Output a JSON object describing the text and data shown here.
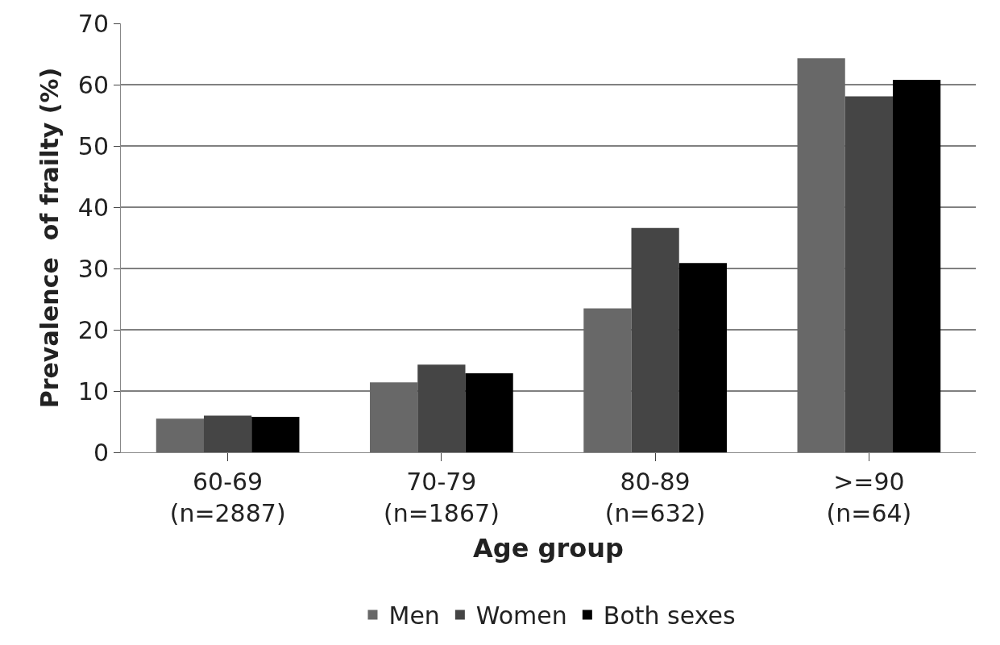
{
  "chart_data": {
    "type": "bar",
    "xlabel": "Age group",
    "ylabel": "Prevalence  of frailty (%)",
    "categories": [
      "60-69\n(n=2887)",
      "70-79\n(n=1867)",
      "80-89\n(n=632)",
      ">=90\n(n=64)"
    ],
    "series": [
      {
        "name": "Men",
        "color": "#686868",
        "values": [
          5.5,
          11.4,
          23.5,
          64.3
        ]
      },
      {
        "name": "Women",
        "color": "#454545",
        "values": [
          6.0,
          14.3,
          36.6,
          58.1
        ]
      },
      {
        "name": "Both sexes",
        "color": "#000000",
        "values": [
          5.8,
          12.9,
          30.9,
          60.8
        ]
      }
    ],
    "ylim": [
      0,
      70
    ],
    "yticks": [
      0,
      10,
      20,
      30,
      40,
      50,
      60,
      70
    ],
    "grid": "y",
    "legend": "bottom"
  }
}
